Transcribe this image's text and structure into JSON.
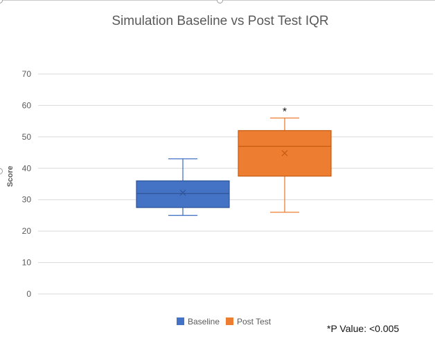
{
  "chart_data": {
    "type": "box",
    "title": "Simulation Baseline vs Post Test IQR",
    "ylabel": "Score",
    "xlabel": "",
    "ylim": [
      0,
      70
    ],
    "yticks": [
      0,
      10,
      20,
      30,
      40,
      50,
      60,
      70
    ],
    "grid": true,
    "legend_position": "bottom",
    "series": [
      {
        "name": "Baseline",
        "color": "#4472c4",
        "min": 25,
        "q1": 27.5,
        "median": 32,
        "q3": 36,
        "max": 43,
        "mean": 32.2
      },
      {
        "name": "Post Test",
        "color": "#ed7d31",
        "min": 26,
        "q1": 37.5,
        "median": 47,
        "q3": 52,
        "max": 56,
        "mean": 44.8
      }
    ],
    "annotations": [
      {
        "text": "*",
        "series": "Post Test"
      },
      {
        "text": "*P Value: <0.005"
      }
    ]
  }
}
